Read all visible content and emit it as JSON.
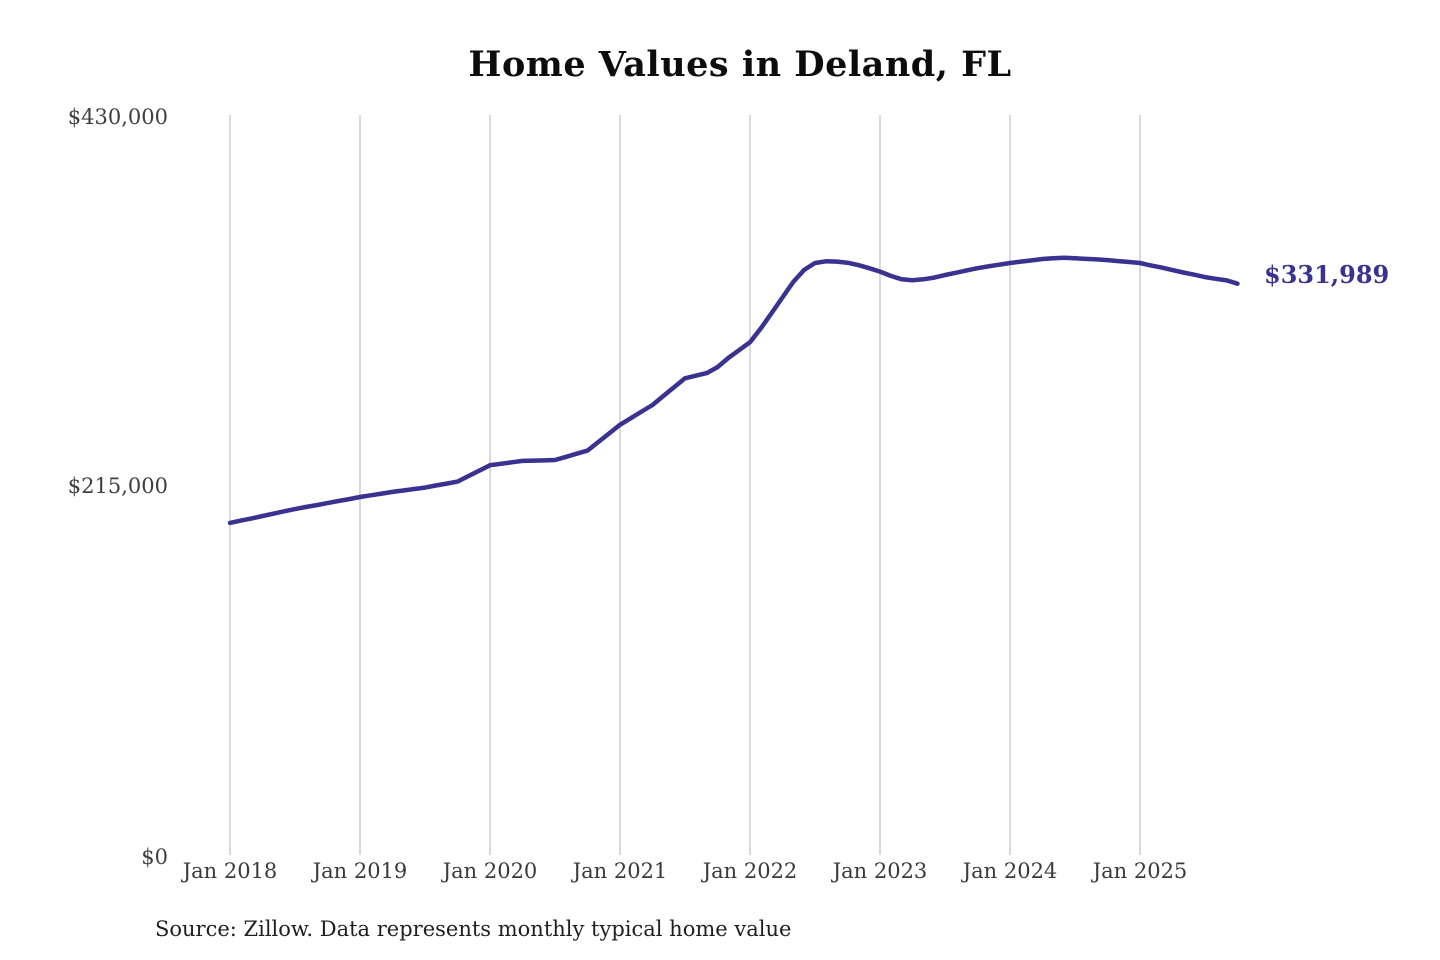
{
  "title": "Home Values in Deland, FL",
  "end_value_label": "$331,989",
  "source_note": "Source: Zillow. Data represents monthly typical home value",
  "colors": {
    "line": "#3a3291",
    "grid": "#c9c9c9",
    "axis_text": "#3a3a3a",
    "title_text": "#0c0c0c",
    "background": "#ffffff"
  },
  "chart_data": {
    "type": "line",
    "title": "Home Values in Deland, FL",
    "xlabel": "",
    "ylabel": "",
    "ylim": [
      0,
      430000
    ],
    "y_ticks": [
      0,
      215000,
      430000
    ],
    "y_tick_labels_top_to_bottom": [
      "$430,000",
      "$215,000",
      "$0"
    ],
    "x_tick_labels": [
      "Jan 2018",
      "Jan 2019",
      "Jan 2020",
      "Jan 2021",
      "Jan 2022",
      "Jan 2023",
      "Jan 2024",
      "Jan 2025"
    ],
    "grid": "vertical-only",
    "legend": "none",
    "annotation": {
      "text": "$331,989",
      "value": 331989,
      "position": "end-of-line"
    },
    "source": "Zillow",
    "series": [
      {
        "name": "Monthly typical home value",
        "color": "#3a3291",
        "start_month": "2018-01",
        "interval_months": 1,
        "values": [
          193000,
          194300,
          195600,
          197000,
          198300,
          199700,
          201000,
          202200,
          203300,
          204500,
          205700,
          206800,
          208000,
          209000,
          210000,
          211000,
          211800,
          212700,
          213500,
          214700,
          215800,
          217000,
          220200,
          223300,
          226500,
          227300,
          228200,
          229000,
          229200,
          229300,
          229500,
          231300,
          233200,
          235000,
          240000,
          245000,
          250000,
          253800,
          257700,
          261500,
          266700,
          271900,
          277000,
          278500,
          280000,
          283500,
          288800,
          293400,
          298000,
          306000,
          315000,
          324000,
          333000,
          340000,
          344000,
          345000,
          344800,
          344200,
          342800,
          341000,
          339000,
          336500,
          334500,
          334000,
          334500,
          335500,
          337000,
          338300,
          339700,
          341000,
          342000,
          343000,
          344000,
          344800,
          345500,
          346300,
          346800,
          347000,
          346800,
          346400,
          346100,
          345700,
          345100,
          344600,
          344000,
          342600,
          341300,
          339900,
          338500,
          337200,
          335800,
          334800,
          333900,
          331989
        ]
      }
    ]
  }
}
